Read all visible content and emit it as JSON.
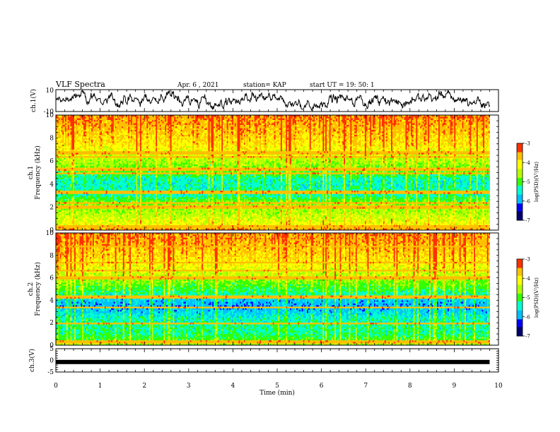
{
  "header": {
    "title": "VLF Spectra",
    "date": "Apr. 6  , 2021",
    "station": "station= KAP",
    "start": "start  UT  =   19: 50: 1"
  },
  "colors": {
    "palette": [
      "#00006e",
      "#0000ff",
      "#00bfff",
      "#00ffd0",
      "#33ff00",
      "#b4ff00",
      "#ffff00",
      "#ffc000",
      "#ff3000"
    ],
    "trace": "#000000",
    "frame": "#000000"
  },
  "chart_data": [
    {
      "type": "line",
      "name": "ch1-waveform",
      "ylabel": "ch.1(V)",
      "ylim": [
        -10,
        10
      ],
      "yticks": [
        "10",
        "-10"
      ],
      "xlim": [
        0,
        10
      ],
      "x_extent": [
        0,
        9.8
      ],
      "description_values": {
        "mean": 0,
        "amplitude": 6
      }
    },
    {
      "type": "heatmap",
      "name": "ch1-spectrogram",
      "ylabel": "ch.1\nFrequency  (kHz)",
      "ylabel_lines": [
        "ch.1",
        "Frequency  (kHz)"
      ],
      "ylim": [
        0,
        10
      ],
      "yticks": [
        "0",
        "2",
        "4",
        "6",
        "8",
        "10"
      ],
      "xlim": [
        0,
        10
      ],
      "x_extent": [
        0,
        9.8
      ],
      "colorbar": {
        "label": "log(PSD)(V²/Hz)",
        "range": [
          -7,
          -3
        ],
        "ticks": [
          "-3",
          "-4",
          "-5",
          "-6",
          "-7"
        ]
      },
      "frequency_profile_kHz": [
        0,
        0.5,
        1,
        1.5,
        2,
        2.5,
        3,
        3.5,
        4,
        4.5,
        5,
        5.5,
        6,
        6.5,
        7,
        7.5,
        8,
        8.5,
        9,
        9.5,
        10
      ],
      "log_psd_profile": [
        -3.6,
        -4.2,
        -4.4,
        -4.6,
        -4.7,
        -4.9,
        -5.4,
        -5.4,
        -5.5,
        -5.4,
        -5.0,
        -4.8,
        -4.6,
        -4.4,
        -4.2,
        -4.0,
        -3.9,
        -3.8,
        -3.7,
        -3.6,
        -3.5
      ],
      "horizontal_lines_kHz": [
        0.3,
        2.0,
        2.4,
        3.3,
        4.9,
        5.3,
        6.4,
        6.7
      ]
    },
    {
      "type": "heatmap",
      "name": "ch2-spectrogram",
      "ylabel": "ch.2\nFrequency  (kHz)",
      "ylabel_lines": [
        "ch.2",
        "Frequency  (kHz)"
      ],
      "ylim": [
        0,
        10
      ],
      "yticks": [
        "0",
        "2",
        "4",
        "6",
        "8",
        "10"
      ],
      "xlim": [
        0,
        10
      ],
      "x_extent": [
        0,
        9.8
      ],
      "colorbar": {
        "label": "log(PSD)(V²/Hz)",
        "range": [
          -7,
          -3
        ],
        "ticks": [
          "-3",
          "-4",
          "-5",
          "-6",
          "-7"
        ]
      },
      "frequency_profile_kHz": [
        0,
        0.5,
        1,
        1.5,
        2,
        2.5,
        3,
        3.5,
        4,
        4.5,
        5,
        5.5,
        6,
        6.5,
        7,
        7.5,
        8,
        8.5,
        9,
        9.5,
        10
      ],
      "log_psd_profile": [
        -4.6,
        -5.0,
        -5.3,
        -5.3,
        -5.4,
        -5.5,
        -5.8,
        -6.0,
        -5.8,
        -5.4,
        -5.1,
        -4.9,
        -4.6,
        -4.4,
        -4.2,
        -4.0,
        -3.9,
        -3.8,
        -3.7,
        -3.6,
        -3.6
      ],
      "horizontal_lines_kHz": [
        0.3,
        1.9,
        3.4,
        4.3,
        6.0,
        6.6,
        7.4,
        8.8
      ]
    },
    {
      "type": "line",
      "name": "ch3-waveform",
      "ylabel": "ch.3(V)",
      "ylim": [
        -5,
        5
      ],
      "yticks": [
        "5",
        "0",
        "-5"
      ],
      "xlim": [
        0,
        10
      ],
      "x_extent": [
        0,
        9.8
      ],
      "level": -0.7
    }
  ],
  "xaxis": {
    "label": "Time  (min)",
    "ticks": [
      "0",
      "1",
      "2",
      "3",
      "4",
      "5",
      "6",
      "7",
      "8",
      "9",
      "10"
    ],
    "range": [
      0,
      10
    ]
  }
}
